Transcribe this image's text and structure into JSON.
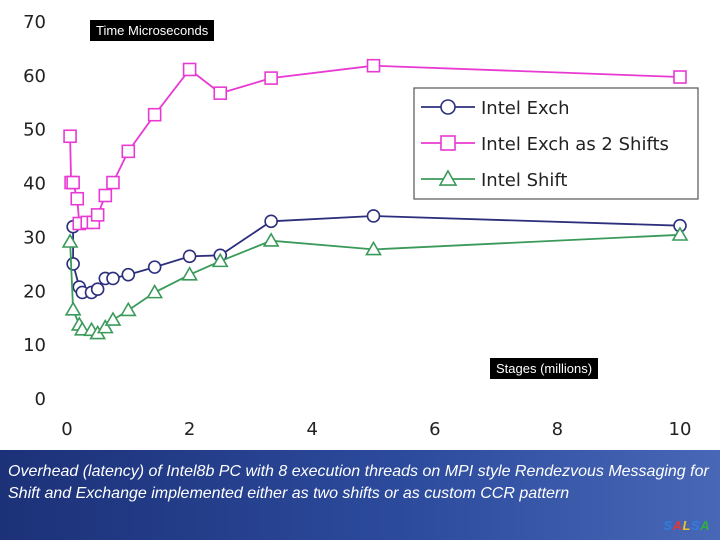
{
  "chart_data": {
    "type": "line",
    "xlim": [
      0,
      10
    ],
    "ylim": [
      0,
      70
    ],
    "xticks": [
      0,
      2,
      4,
      6,
      8,
      10
    ],
    "yticks": [
      0,
      10,
      20,
      30,
      40,
      50,
      60,
      70
    ],
    "ylabel_box": "Time Microseconds",
    "xlabel_box": "Stages (millions)",
    "legend_position": "top-right",
    "grid": false,
    "series": [
      {
        "name": "Intel Exch",
        "marker": "circle",
        "color": "#2c2f7c",
        "points": [
          [
            0.1,
            31.8
          ],
          [
            0.1,
            24.9
          ],
          [
            0.2,
            20.6
          ],
          [
            0.25,
            19.6
          ],
          [
            0.4,
            19.6
          ],
          [
            0.5,
            20.2
          ],
          [
            0.625,
            22.2
          ],
          [
            0.75,
            22.2
          ],
          [
            1.0,
            22.9
          ],
          [
            1.43,
            24.3
          ],
          [
            2.0,
            26.3
          ],
          [
            2.5,
            26.5
          ],
          [
            3.33,
            32.8
          ],
          [
            5.0,
            33.8
          ],
          [
            10.0,
            32.0
          ]
        ]
      },
      {
        "name": "Intel Exch as 2 Shifts",
        "marker": "square",
        "color": "#e83ad2",
        "points": [
          [
            0.05,
            48.6
          ],
          [
            0.067,
            40.0
          ],
          [
            0.1,
            40.0
          ],
          [
            0.167,
            37.0
          ],
          [
            0.2,
            32.4
          ],
          [
            0.33,
            32.6
          ],
          [
            0.43,
            32.6
          ],
          [
            0.5,
            34.0
          ],
          [
            0.625,
            37.6
          ],
          [
            0.75,
            40.0
          ],
          [
            1.0,
            45.8
          ],
          [
            1.43,
            52.6
          ],
          [
            2.0,
            61.0
          ],
          [
            2.5,
            56.6
          ],
          [
            3.33,
            59.4
          ],
          [
            5.0,
            61.7
          ],
          [
            10.0,
            59.6
          ]
        ]
      },
      {
        "name": "Intel Shift",
        "marker": "triangle",
        "color": "#3a9a5a",
        "points": [
          [
            0.05,
            29.0
          ],
          [
            0.1,
            16.4
          ],
          [
            0.2,
            13.6
          ],
          [
            0.25,
            12.7
          ],
          [
            0.4,
            12.6
          ],
          [
            0.5,
            12.0
          ],
          [
            0.625,
            13.1
          ],
          [
            0.75,
            14.5
          ],
          [
            1.0,
            16.3
          ],
          [
            1.43,
            19.6
          ],
          [
            2.0,
            22.9
          ],
          [
            2.5,
            25.4
          ],
          [
            3.33,
            29.2
          ],
          [
            5.0,
            27.6
          ],
          [
            10.0,
            30.3
          ]
        ]
      }
    ]
  },
  "caption": "Overhead (latency) of Intel8b PC with 8 execution threads on MPI style Rendezvous Messaging for Shift and Exchange implemented either as two shifts or as custom CCR pattern",
  "brand": {
    "letters": [
      "S",
      "A",
      "L",
      "S",
      "A"
    ],
    "colors": [
      "#2f7de0",
      "#e03838",
      "#f0c020",
      "#2f7de0",
      "#30b040"
    ]
  }
}
